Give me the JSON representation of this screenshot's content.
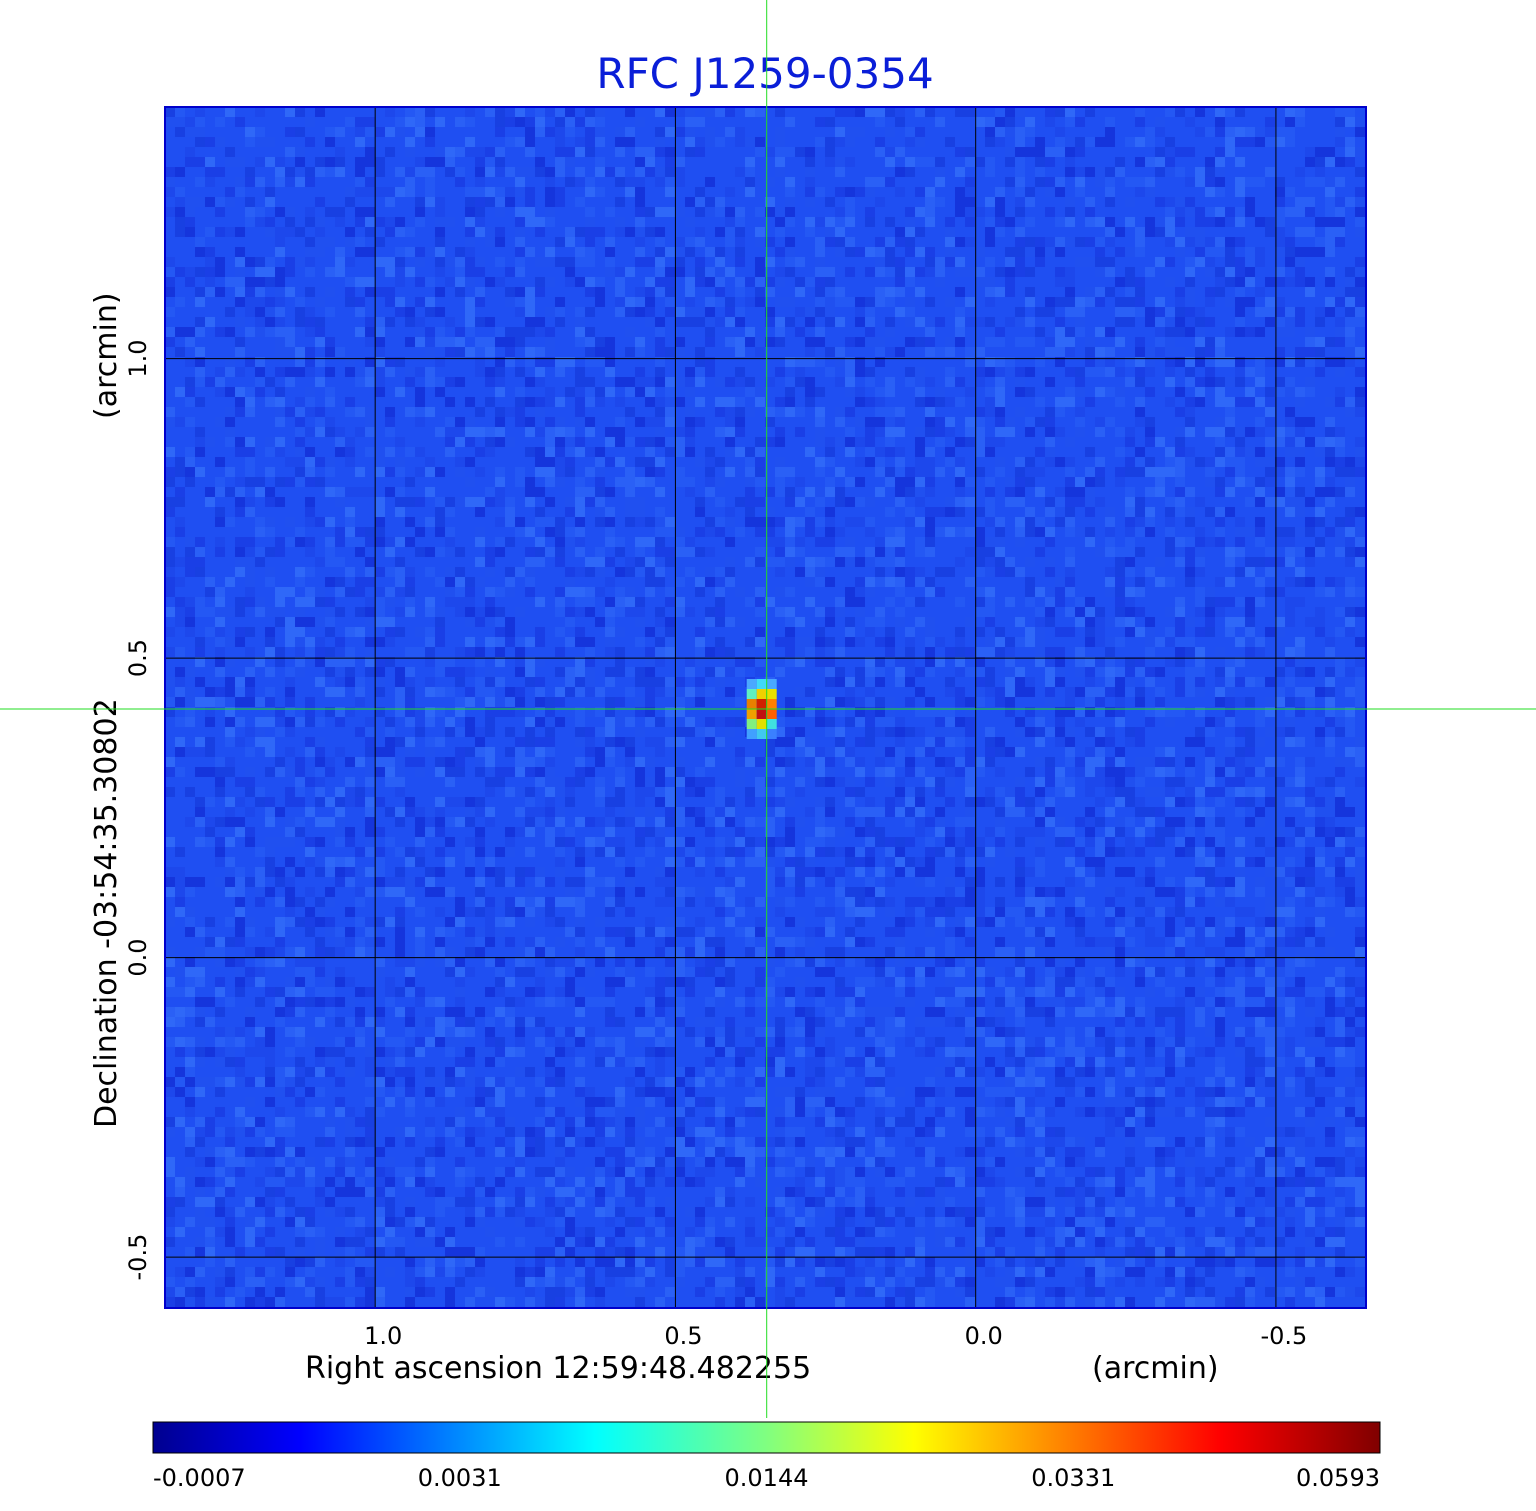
{
  "chart_data": {
    "type": "heatmap",
    "title": "RFC J1259-0354",
    "xlabel": "Right ascension  12:59:48.482255",
    "xunit": "(arcmin)",
    "ylabel": "Declination  -03:54:35.30802",
    "yunit": "(arcmin)",
    "xlim": [
      1.35,
      -0.65
    ],
    "ylim": [
      -0.585,
      1.42
    ],
    "x_ticks": [
      1.0,
      0.5,
      0.0,
      -0.5
    ],
    "x_tick_labels": [
      "1.0",
      "0.5",
      "0.0",
      "-0.5"
    ],
    "y_ticks": [
      -0.5,
      0.0,
      0.5,
      1.0
    ],
    "y_tick_labels": [
      "-0.5",
      "0.0",
      "0.5",
      "1.0"
    ],
    "grid": true,
    "crosshair": {
      "x": 0.348,
      "y": 0.415
    },
    "source_peak": {
      "x": 0.348,
      "y": 0.415,
      "value": 0.0593
    },
    "colorbar": {
      "min": -0.0007,
      "max": 0.0593,
      "tick_labels": [
        "-0.0007",
        "0.0031",
        "0.0144",
        "0.0331",
        "0.0593"
      ],
      "colormap": "jet"
    },
    "colors": {
      "title": "#0a1ed8",
      "background_field": "#1f4ff2",
      "grid": "#000000",
      "crosshair": "#22dd22"
    }
  }
}
